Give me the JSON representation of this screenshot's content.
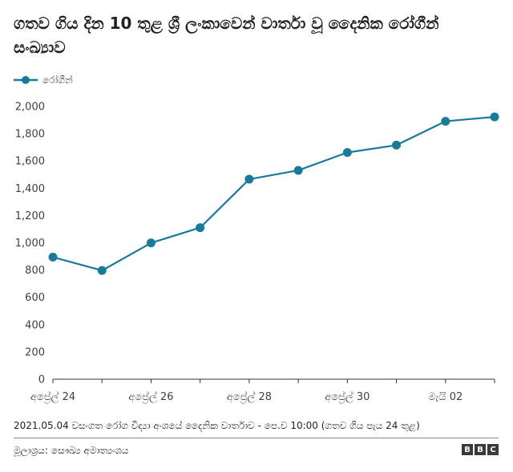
{
  "chart_data": {
    "type": "line",
    "title": "ගතව ගිය දින 10 තුළ ශ්‍රී ලංකාවෙන් වාර්තා වූ දෛනික රෝගීන් සංඛ්‍යාව",
    "x": [
      "2021-04-24",
      "2021-04-25",
      "2021-04-26",
      "2021-04-27",
      "2021-04-28",
      "2021-04-29",
      "2021-04-30",
      "2021-05-01",
      "2021-05-02",
      "2021-05-03"
    ],
    "series": [
      {
        "name": "රෝගීන්",
        "values": [
          895,
          797,
          999,
          1111,
          1466,
          1531,
          1662,
          1716,
          1891,
          1923
        ]
      }
    ],
    "xticks": [
      {
        "x": "2021-04-24",
        "label": "අප්‍රේල් 24"
      },
      {
        "x": "2021-04-26",
        "label": "අප්‍රේල් 26"
      },
      {
        "x": "2021-04-28",
        "label": "අප්‍රේල් 28"
      },
      {
        "x": "2021-04-30",
        "label": "අප්‍රේල් 30"
      },
      {
        "x": "2021-05-02",
        "label": "මැයි 02"
      }
    ],
    "yticks": [
      "0",
      "200",
      "400",
      "600",
      "800",
      "1,000",
      "1,200",
      "1,400",
      "1,600",
      "1,800",
      "2,000"
    ],
    "ylim": [
      0,
      2000
    ],
    "grid": false,
    "legend_position": "top-left",
    "color": "#1a7a99"
  },
  "footer": {
    "note": "2021.05.04 වසංගත රෝග විද්‍යා අංශයේ දෛනික වාර්තාව - පෙ.ව 10:00 (ගතව ගිය පැය 24 තුළ)",
    "source": "මූලාශ්‍රය: සෞඛ්‍ය අමාත්‍යංශය",
    "logo_letters": [
      "B",
      "B",
      "C"
    ]
  }
}
